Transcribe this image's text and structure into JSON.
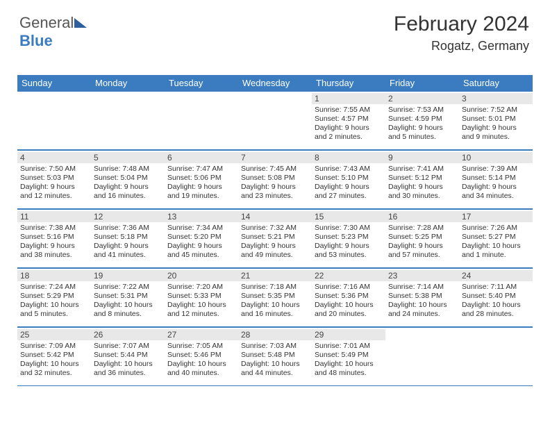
{
  "logo": {
    "text_a": "General",
    "text_b": "Blue"
  },
  "title": "February 2024",
  "location": "Rogatz, Germany",
  "header_bg": "#3a7cbf",
  "day_bar_bg": "#e8e8e8",
  "weekdays": [
    "Sunday",
    "Monday",
    "Tuesday",
    "Wednesday",
    "Thursday",
    "Friday",
    "Saturday"
  ],
  "weeks": [
    [
      null,
      null,
      null,
      null,
      {
        "n": "1",
        "sr": "7:55 AM",
        "ss": "4:57 PM",
        "dl": "9 hours and 2 minutes."
      },
      {
        "n": "2",
        "sr": "7:53 AM",
        "ss": "4:59 PM",
        "dl": "9 hours and 5 minutes."
      },
      {
        "n": "3",
        "sr": "7:52 AM",
        "ss": "5:01 PM",
        "dl": "9 hours and 9 minutes."
      }
    ],
    [
      {
        "n": "4",
        "sr": "7:50 AM",
        "ss": "5:03 PM",
        "dl": "9 hours and 12 minutes."
      },
      {
        "n": "5",
        "sr": "7:48 AM",
        "ss": "5:04 PM",
        "dl": "9 hours and 16 minutes."
      },
      {
        "n": "6",
        "sr": "7:47 AM",
        "ss": "5:06 PM",
        "dl": "9 hours and 19 minutes."
      },
      {
        "n": "7",
        "sr": "7:45 AM",
        "ss": "5:08 PM",
        "dl": "9 hours and 23 minutes."
      },
      {
        "n": "8",
        "sr": "7:43 AM",
        "ss": "5:10 PM",
        "dl": "9 hours and 27 minutes."
      },
      {
        "n": "9",
        "sr": "7:41 AM",
        "ss": "5:12 PM",
        "dl": "9 hours and 30 minutes."
      },
      {
        "n": "10",
        "sr": "7:39 AM",
        "ss": "5:14 PM",
        "dl": "9 hours and 34 minutes."
      }
    ],
    [
      {
        "n": "11",
        "sr": "7:38 AM",
        "ss": "5:16 PM",
        "dl": "9 hours and 38 minutes."
      },
      {
        "n": "12",
        "sr": "7:36 AM",
        "ss": "5:18 PM",
        "dl": "9 hours and 41 minutes."
      },
      {
        "n": "13",
        "sr": "7:34 AM",
        "ss": "5:20 PM",
        "dl": "9 hours and 45 minutes."
      },
      {
        "n": "14",
        "sr": "7:32 AM",
        "ss": "5:21 PM",
        "dl": "9 hours and 49 minutes."
      },
      {
        "n": "15",
        "sr": "7:30 AM",
        "ss": "5:23 PM",
        "dl": "9 hours and 53 minutes."
      },
      {
        "n": "16",
        "sr": "7:28 AM",
        "ss": "5:25 PM",
        "dl": "9 hours and 57 minutes."
      },
      {
        "n": "17",
        "sr": "7:26 AM",
        "ss": "5:27 PM",
        "dl": "10 hours and 1 minute."
      }
    ],
    [
      {
        "n": "18",
        "sr": "7:24 AM",
        "ss": "5:29 PM",
        "dl": "10 hours and 5 minutes."
      },
      {
        "n": "19",
        "sr": "7:22 AM",
        "ss": "5:31 PM",
        "dl": "10 hours and 8 minutes."
      },
      {
        "n": "20",
        "sr": "7:20 AM",
        "ss": "5:33 PM",
        "dl": "10 hours and 12 minutes."
      },
      {
        "n": "21",
        "sr": "7:18 AM",
        "ss": "5:35 PM",
        "dl": "10 hours and 16 minutes."
      },
      {
        "n": "22",
        "sr": "7:16 AM",
        "ss": "5:36 PM",
        "dl": "10 hours and 20 minutes."
      },
      {
        "n": "23",
        "sr": "7:14 AM",
        "ss": "5:38 PM",
        "dl": "10 hours and 24 minutes."
      },
      {
        "n": "24",
        "sr": "7:11 AM",
        "ss": "5:40 PM",
        "dl": "10 hours and 28 minutes."
      }
    ],
    [
      {
        "n": "25",
        "sr": "7:09 AM",
        "ss": "5:42 PM",
        "dl": "10 hours and 32 minutes."
      },
      {
        "n": "26",
        "sr": "7:07 AM",
        "ss": "5:44 PM",
        "dl": "10 hours and 36 minutes."
      },
      {
        "n": "27",
        "sr": "7:05 AM",
        "ss": "5:46 PM",
        "dl": "10 hours and 40 minutes."
      },
      {
        "n": "28",
        "sr": "7:03 AM",
        "ss": "5:48 PM",
        "dl": "10 hours and 44 minutes."
      },
      {
        "n": "29",
        "sr": "7:01 AM",
        "ss": "5:49 PM",
        "dl": "10 hours and 48 minutes."
      },
      null,
      null
    ]
  ],
  "labels": {
    "sunrise": "Sunrise: ",
    "sunset": "Sunset: ",
    "daylight": "Daylight: "
  }
}
